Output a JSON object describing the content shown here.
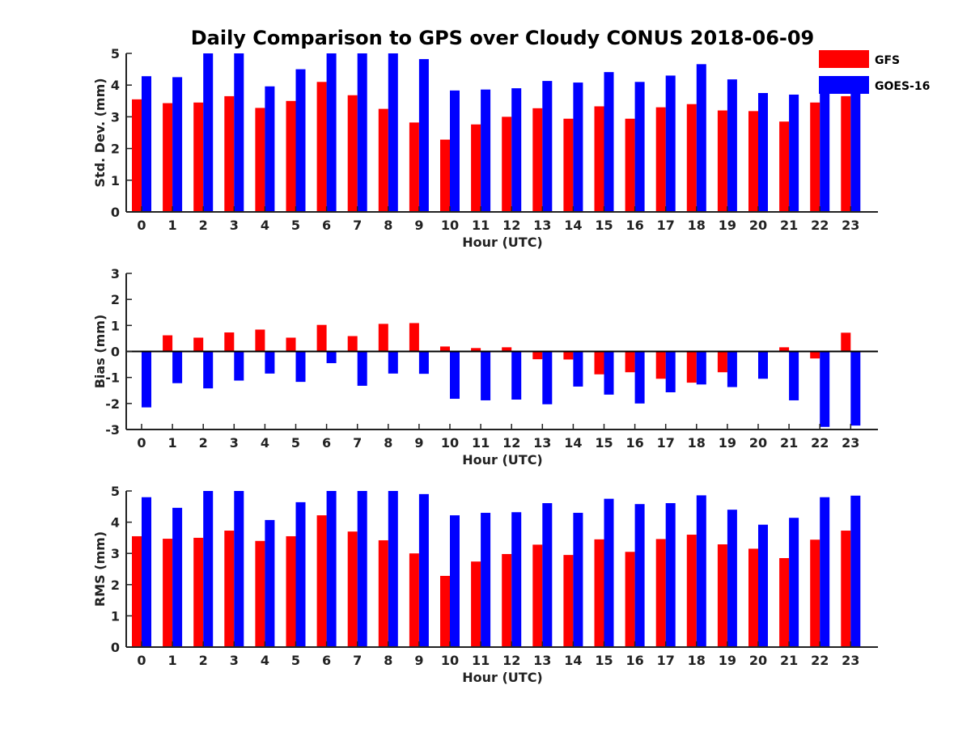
{
  "chart_data": {
    "title": "Daily Comparison to GPS over Cloudy CONUS 2018-06-09",
    "type": "bar",
    "categories": [
      "0",
      "1",
      "2",
      "3",
      "4",
      "5",
      "6",
      "7",
      "8",
      "9",
      "10",
      "11",
      "12",
      "13",
      "14",
      "15",
      "16",
      "17",
      "18",
      "19",
      "20",
      "21",
      "22",
      "23"
    ],
    "legend": {
      "placement": "top-right",
      "entries": [
        {
          "name": "GFS",
          "color": "#ff0000"
        },
        {
          "name": "GOES-16",
          "color": "#0000ff"
        }
      ]
    },
    "panels": [
      {
        "ylabel": "Std. Dev. (mm)",
        "xlabel": "Hour (UTC)",
        "ylim": [
          0,
          5
        ],
        "yticks": [
          "0",
          "1",
          "2",
          "3",
          "4",
          "5"
        ],
        "series": [
          {
            "name": "GFS",
            "values": [
              3.55,
              3.43,
              3.45,
              3.65,
              3.28,
              3.5,
              4.1,
              3.68,
              3.25,
              2.82,
              2.28,
              2.76,
              3.0,
              3.27,
              2.94,
              3.33,
              2.94,
              3.3,
              3.4,
              3.2,
              3.18,
              2.85,
              3.45,
              3.65
            ]
          },
          {
            "name": "GOES-16",
            "values": [
              4.28,
              4.25,
              5.0,
              5.0,
              3.96,
              4.5,
              5.0,
              5.0,
              5.0,
              4.82,
              3.83,
              3.86,
              3.9,
              4.13,
              4.08,
              4.41,
              4.1,
              4.3,
              4.66,
              4.18,
              3.75,
              3.7,
              3.8,
              3.82
            ]
          }
        ]
      },
      {
        "ylabel": "Bias (mm)",
        "xlabel": "Hour (UTC)",
        "ylim": [
          -3,
          3
        ],
        "yticks": [
          "-3",
          "-2",
          "-1",
          "0",
          "1",
          "2",
          "3"
        ],
        "series": [
          {
            "name": "GFS",
            "values": [
              0.0,
              0.62,
              0.53,
              0.73,
              0.84,
              0.53,
              1.02,
              0.59,
              1.06,
              1.09,
              0.19,
              0.13,
              0.16,
              -0.3,
              -0.31,
              -0.88,
              -0.8,
              -1.05,
              -1.2,
              -0.8,
              0.02,
              0.16,
              -0.27,
              0.72
            ]
          },
          {
            "name": "GOES-16",
            "values": [
              -2.15,
              -1.22,
              -1.42,
              -1.12,
              -0.85,
              -1.17,
              -0.45,
              -1.32,
              -0.85,
              -0.86,
              -1.82,
              -1.88,
              -1.85,
              -2.03,
              -1.35,
              -1.66,
              -2.0,
              -1.57,
              -1.27,
              -1.37,
              -1.05,
              -1.88,
              -2.9,
              -2.85
            ]
          }
        ]
      },
      {
        "ylabel": "RMS (mm)",
        "xlabel": "Hour (UTC)",
        "ylim": [
          0,
          5
        ],
        "yticks": [
          "0",
          "1",
          "2",
          "3",
          "4",
          "5"
        ],
        "series": [
          {
            "name": "GFS",
            "values": [
              3.55,
              3.47,
              3.5,
              3.73,
              3.4,
              3.55,
              4.22,
              3.7,
              3.42,
              3.0,
              2.28,
              2.74,
              2.98,
              3.28,
              2.95,
              3.45,
              3.05,
              3.46,
              3.6,
              3.29,
              3.15,
              2.85,
              3.44,
              3.73
            ]
          },
          {
            "name": "GOES-16",
            "values": [
              4.8,
              4.46,
              5.0,
              5.0,
              4.07,
              4.64,
              5.0,
              5.0,
              5.0,
              4.9,
              4.22,
              4.3,
              4.32,
              4.61,
              4.3,
              4.75,
              4.58,
              4.61,
              4.86,
              4.4,
              3.92,
              4.14,
              4.8,
              4.85
            ]
          }
        ]
      }
    ]
  }
}
